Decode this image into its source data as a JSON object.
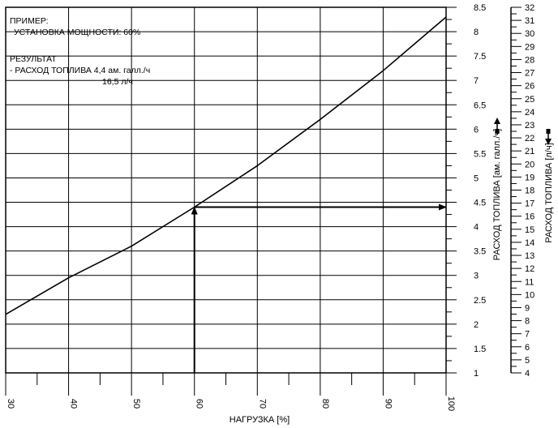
{
  "annotations": {
    "example_title": "ПРИМЕР:",
    "example_setting": "УСТАНОВКА МОЩНОСТИ: 60%",
    "result_title": "РЕЗУЛЬТАТ",
    "result_gal": "- РАСХОД ТОПЛИВА 4,4 ам. галл./ч",
    "result_l": "16,5 л/ч"
  },
  "chart_data": {
    "type": "line",
    "title": "",
    "xlabel": "НАГРУЗКА [%]",
    "ylabel": "РАСХОД ТОПЛИВА [ам. галл./ч]",
    "y2label": "РАСХОД ТОПЛИВА [л/ч]",
    "xlim": [
      30,
      100
    ],
    "ylim": [
      1,
      8.5
    ],
    "y2lim": [
      4,
      32
    ],
    "grid": true,
    "x_ticks": [
      30,
      40,
      50,
      60,
      70,
      80,
      90,
      100
    ],
    "x_tick_labels": [
      "30",
      "40",
      "50",
      "60",
      "70",
      "80",
      "90",
      "100"
    ],
    "y_ticks": [
      1,
      1.5,
      2,
      2.5,
      3,
      3.5,
      4,
      4.5,
      5,
      5.5,
      6,
      6.5,
      7,
      7.5,
      8,
      8.5
    ],
    "y_tick_labels": [
      "1",
      "1.5",
      "2",
      "2.5",
      "3",
      "3.5",
      "4",
      "4.5",
      "5",
      "5.5",
      "6",
      "6.5",
      "7",
      "7.5",
      "8",
      "8.5"
    ],
    "y2_ticks": [
      4,
      5,
      6,
      7,
      8,
      9,
      10,
      11,
      12,
      13,
      14,
      15,
      16,
      17,
      18,
      19,
      20,
      21,
      22,
      23,
      24,
      25,
      26,
      27,
      28,
      29,
      30,
      31,
      32
    ],
    "y2_tick_labels": [
      "4",
      "5",
      "6",
      "7",
      "8",
      "9",
      "10",
      "11",
      "12",
      "13",
      "14",
      "15",
      "16",
      "17",
      "18",
      "19",
      "20",
      "21",
      "22",
      "23",
      "24",
      "25",
      "26",
      "27",
      "28",
      "29",
      "30",
      "31",
      "32"
    ],
    "series": [
      {
        "name": "",
        "x": [
          30,
          40,
          50,
          60,
          70,
          80,
          90,
          100
        ],
        "y": [
          2.2,
          2.95,
          3.6,
          4.4,
          5.25,
          6.2,
          7.2,
          8.3
        ]
      }
    ],
    "example": {
      "x": 60,
      "y": 4.4,
      "y2": 16.5
    }
  }
}
